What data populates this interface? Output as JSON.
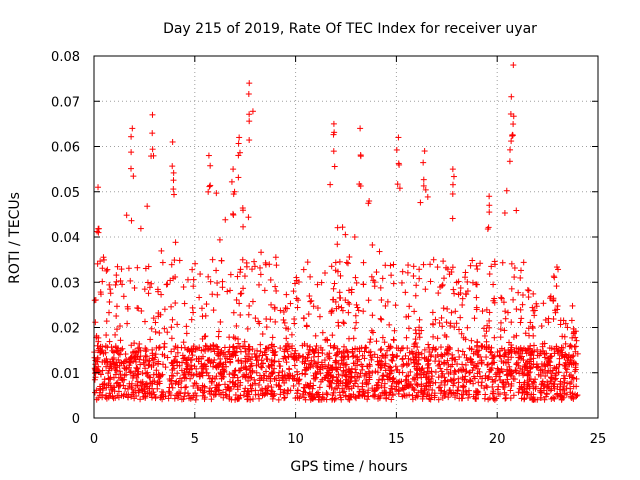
{
  "chart_data": {
    "type": "scatter",
    "title": "Day 215 of 2019, Rate Of TEC Index for receiver uyar",
    "xlabel": "GPS time / hours",
    "ylabel": "ROTI / TECUs",
    "xlim": [
      0,
      25
    ],
    "ylim": [
      0,
      0.08
    ],
    "xticks": [
      0,
      5,
      10,
      15,
      20,
      25
    ],
    "xtick_labels": [
      "0",
      "5",
      "10",
      "15",
      "20",
      "25"
    ],
    "yticks": [
      0,
      0.01,
      0.02,
      0.03,
      0.04,
      0.05,
      0.06,
      0.07,
      0.08
    ],
    "ytick_labels": [
      "0",
      "0.01",
      "0.02",
      "0.03",
      "0.04",
      "0.05",
      "0.06",
      "0.07",
      "0.08"
    ],
    "grid": true,
    "marker": "+",
    "color": "#ff0000",
    "series": [
      {
        "name": "ROTI",
        "x_range_hours": [
          0,
          24
        ],
        "typical_range": [
          0.004,
          0.02
        ],
        "envelope_hours": [
          0,
          0.25,
          0.5,
          1,
          1.8,
          2.2,
          2.9,
          3.3,
          4,
          4.5,
          5.4,
          5.9,
          6.4,
          7,
          7.3,
          7.6,
          7.8,
          8.2,
          9,
          9.5,
          10.2,
          11,
          11.5,
          11.9,
          12.2,
          12.8,
          13.2,
          13.7,
          14.5,
          15,
          15.2,
          15.8,
          16.4,
          16.8,
          17.3,
          17.8,
          18.3,
          19,
          19.6,
          20,
          20.4,
          20.7,
          21,
          21.5,
          22,
          22.5,
          23,
          23.3,
          23.6,
          24
        ],
        "envelope_roti": [
          0.03,
          0.051,
          0.036,
          0.027,
          0.064,
          0.04,
          0.067,
          0.045,
          0.061,
          0.038,
          0.035,
          0.058,
          0.045,
          0.05,
          0.055,
          0.062,
          0.074,
          0.048,
          0.038,
          0.033,
          0.035,
          0.038,
          0.04,
          0.065,
          0.052,
          0.04,
          0.063,
          0.05,
          0.035,
          0.062,
          0.055,
          0.045,
          0.059,
          0.045,
          0.035,
          0.055,
          0.04,
          0.049,
          0.035,
          0.04,
          0.05,
          0.078,
          0.04,
          0.035,
          0.03,
          0.028,
          0.036,
          0.022,
          0.034,
          0.015
        ],
        "notable_peaks": [
          {
            "x": 0.2,
            "y": 0.051
          },
          {
            "x": 1.9,
            "y": 0.064
          },
          {
            "x": 2.9,
            "y": 0.067
          },
          {
            "x": 3.9,
            "y": 0.061
          },
          {
            "x": 5.7,
            "y": 0.058
          },
          {
            "x": 6.9,
            "y": 0.055
          },
          {
            "x": 7.2,
            "y": 0.062
          },
          {
            "x": 7.7,
            "y": 0.074
          },
          {
            "x": 11.9,
            "y": 0.065
          },
          {
            "x": 13.2,
            "y": 0.064
          },
          {
            "x": 15.1,
            "y": 0.062
          },
          {
            "x": 16.4,
            "y": 0.059
          },
          {
            "x": 17.8,
            "y": 0.055
          },
          {
            "x": 19.6,
            "y": 0.049
          },
          {
            "x": 20.8,
            "y": 0.078
          },
          {
            "x": 20.7,
            "y": 0.071
          }
        ]
      }
    ]
  }
}
